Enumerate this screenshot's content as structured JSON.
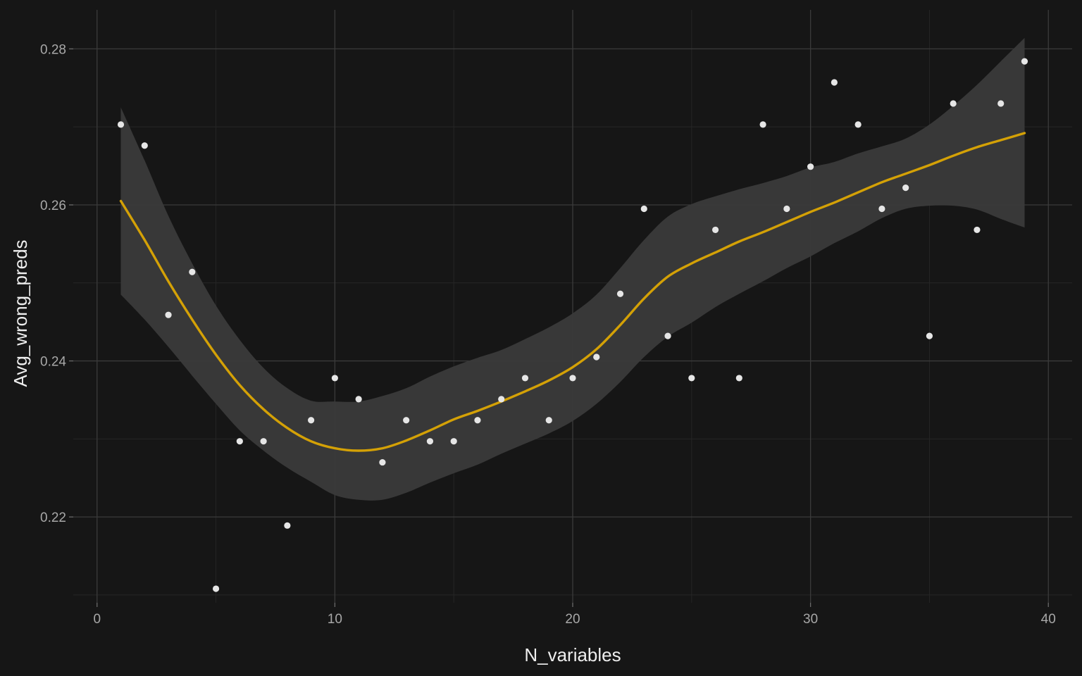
{
  "chart_data": {
    "type": "scatter",
    "title": "",
    "xlabel": "N_variables",
    "ylabel": "Avg_wrong_preds",
    "xlim": [
      -1,
      41
    ],
    "ylim": [
      0.209,
      0.285
    ],
    "x_ticks": [
      0,
      10,
      20,
      30,
      40
    ],
    "y_ticks": [
      0.22,
      0.24,
      0.26,
      0.28
    ],
    "x_tick_labels": [
      "0",
      "10",
      "20",
      "30",
      "40"
    ],
    "y_tick_labels": [
      "0.22",
      "0.24",
      "0.26",
      "0.28"
    ],
    "grid": true,
    "legend": "none",
    "colors": {
      "background": "#161616",
      "grid_major": "#3b3b3b",
      "grid_minor": "#262626",
      "points": "#e6e6e6",
      "smooth_line": "#d4a106",
      "confidence_band": "#3a3a3a"
    },
    "series": [
      {
        "kind": "points",
        "x": [
          1,
          2,
          3,
          4,
          5,
          6,
          7,
          8,
          9,
          10,
          11,
          12,
          13,
          14,
          15,
          16,
          17,
          18,
          19,
          20,
          21,
          22,
          23,
          24,
          25,
          26,
          27,
          28,
          29,
          30,
          31,
          32,
          33,
          34,
          35,
          36,
          37,
          38,
          39
        ],
        "y": [
          0.2703,
          0.2676,
          0.2459,
          0.2514,
          0.2108,
          0.2297,
          0.2297,
          0.2189,
          0.2324,
          0.2378,
          0.2351,
          0.227,
          0.2324,
          0.2297,
          0.2297,
          0.2324,
          0.2351,
          0.2378,
          0.2324,
          0.2378,
          0.2405,
          0.2486,
          0.2595,
          0.2432,
          0.2378,
          0.2568,
          0.2378,
          0.2703,
          0.2595,
          0.2649,
          0.2757,
          0.2703,
          0.2595,
          0.2622,
          0.2432,
          0.273,
          0.2568,
          0.273,
          0.2784
        ]
      },
      {
        "kind": "loess",
        "x": [
          1,
          2,
          3,
          4,
          5,
          6,
          7,
          8,
          9,
          10,
          11,
          12,
          13,
          14,
          15,
          16,
          17,
          18,
          19,
          20,
          21,
          22,
          23,
          24,
          25,
          26,
          27,
          28,
          29,
          30,
          31,
          32,
          33,
          34,
          35,
          36,
          37,
          38,
          39
        ],
        "y": [
          0.2605,
          0.2555,
          0.2502,
          0.2453,
          0.2408,
          0.2369,
          0.2338,
          0.2314,
          0.2297,
          0.2288,
          0.2285,
          0.2288,
          0.2298,
          0.2311,
          0.2325,
          0.2336,
          0.2348,
          0.2361,
          0.2375,
          0.2392,
          0.2415,
          0.2446,
          0.248,
          0.2508,
          0.2525,
          0.2539,
          0.2553,
          0.2565,
          0.2578,
          0.2591,
          0.2603,
          0.2616,
          0.2629,
          0.264,
          0.2651,
          0.2663,
          0.2674,
          0.2683,
          0.2692
        ],
        "lower": [
          0.2485,
          0.2453,
          0.2418,
          0.2381,
          0.2345,
          0.2311,
          0.2285,
          0.2263,
          0.2245,
          0.2228,
          0.2222,
          0.2222,
          0.2231,
          0.2244,
          0.2256,
          0.2267,
          0.2281,
          0.2294,
          0.2307,
          0.2323,
          0.2345,
          0.2373,
          0.2405,
          0.2431,
          0.2449,
          0.2469,
          0.2486,
          0.2502,
          0.2519,
          0.2534,
          0.2551,
          0.2566,
          0.2583,
          0.2595,
          0.2599,
          0.2599,
          0.2594,
          0.2582,
          0.2571
        ],
        "upper": [
          0.2725,
          0.2657,
          0.2586,
          0.2525,
          0.2471,
          0.2427,
          0.2391,
          0.2365,
          0.2349,
          0.2348,
          0.2348,
          0.2355,
          0.2365,
          0.238,
          0.2393,
          0.2404,
          0.2414,
          0.2428,
          0.2443,
          0.2461,
          0.2485,
          0.2519,
          0.2555,
          0.2585,
          0.2601,
          0.2611,
          0.262,
          0.2628,
          0.2637,
          0.2648,
          0.2655,
          0.2666,
          0.2675,
          0.2685,
          0.2703,
          0.2727,
          0.2754,
          0.2784,
          0.2814
        ]
      }
    ]
  }
}
